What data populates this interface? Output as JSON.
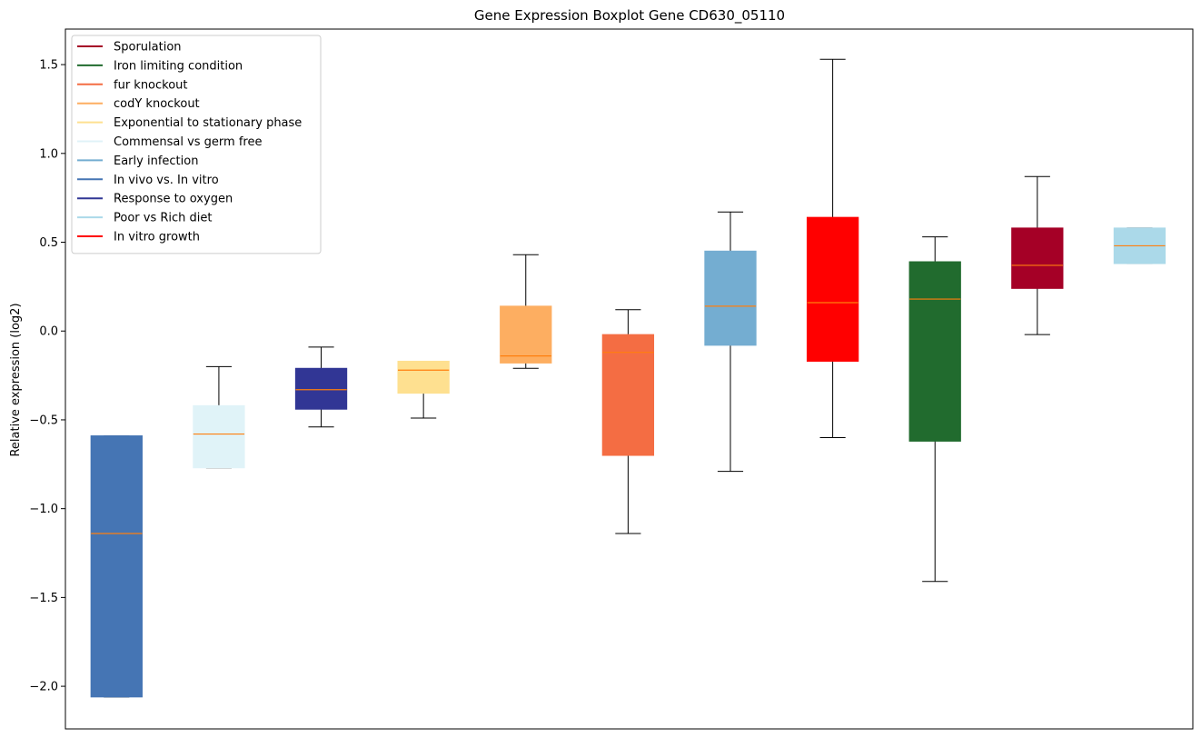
{
  "chart_data": {
    "type": "boxplot",
    "title": "Gene Expression Boxplot Gene CD630_05110",
    "xlabel": "",
    "ylabel": "Relative expression (log2)",
    "ylim": [
      -2.24,
      1.7
    ],
    "yticks": [
      -2.0,
      -1.5,
      -1.0,
      -0.5,
      0.0,
      0.5,
      1.0,
      1.5
    ],
    "ytick_labels": [
      "−2.0",
      "−1.5",
      "−1.0",
      "−0.5",
      "0.0",
      "0.5",
      "1.0",
      "1.5"
    ],
    "legend_position": "top-left",
    "median_color": "#ff7f0e",
    "legend": [
      {
        "label": "Sporulation",
        "color": "#a50026"
      },
      {
        "label": "Iron limiting condition",
        "color": "#216b2e"
      },
      {
        "label": "fur knockout",
        "color": "#f46d43"
      },
      {
        "label": "codY knockout",
        "color": "#fdae61"
      },
      {
        "label": "Exponential to stationary phase",
        "color": "#fee090"
      },
      {
        "label": "Commensal vs germ free",
        "color": "#e0f3f8"
      },
      {
        "label": "Early infection",
        "color": "#74add1"
      },
      {
        "label": "In vivo vs. In vitro",
        "color": "#4575b4"
      },
      {
        "label": "Response to oxygen",
        "color": "#313695"
      },
      {
        "label": "Poor vs Rich diet",
        "color": "#abd9e9"
      },
      {
        "label": "In vitro growth",
        "color": "#ff0000"
      }
    ],
    "boxes": [
      {
        "group": "In vivo vs. In vitro",
        "whislo": -2.06,
        "q1": -2.06,
        "med": -1.14,
        "q3": -0.59,
        "whishi": -0.59,
        "color": "#4575b4"
      },
      {
        "group": "Commensal vs germ free",
        "whislo": -0.77,
        "q1": -0.77,
        "med": -0.58,
        "q3": -0.42,
        "whishi": -0.2,
        "color": "#e0f3f8"
      },
      {
        "group": "Response to oxygen",
        "whislo": -0.54,
        "q1": -0.44,
        "med": -0.33,
        "q3": -0.21,
        "whishi": -0.09,
        "color": "#313695"
      },
      {
        "group": "Exponential to stationary phase",
        "whislo": -0.49,
        "q1": -0.35,
        "med": -0.22,
        "q3": -0.17,
        "whishi": -0.17,
        "color": "#fee090"
      },
      {
        "group": "codY knockout",
        "whislo": -0.21,
        "q1": -0.18,
        "med": -0.14,
        "q3": 0.14,
        "whishi": 0.43,
        "color": "#fdae61"
      },
      {
        "group": "fur knockout",
        "whislo": -1.14,
        "q1": -0.7,
        "med": -0.12,
        "q3": -0.02,
        "whishi": 0.12,
        "color": "#f46d43"
      },
      {
        "group": "Early infection",
        "whislo": -0.79,
        "q1": -0.08,
        "med": 0.14,
        "q3": 0.45,
        "whishi": 0.67,
        "color": "#74add1"
      },
      {
        "group": "In vitro growth",
        "whislo": -0.6,
        "q1": -0.17,
        "med": 0.16,
        "q3": 0.64,
        "whishi": 1.53,
        "color": "#ff0000"
      },
      {
        "group": "Iron limiting condition",
        "whislo": -1.41,
        "q1": -0.62,
        "med": 0.18,
        "q3": 0.39,
        "whishi": 0.53,
        "color": "#216b2e"
      },
      {
        "group": "Sporulation",
        "whislo": -0.02,
        "q1": 0.24,
        "med": 0.37,
        "q3": 0.58,
        "whishi": 0.87,
        "color": "#a50026"
      },
      {
        "group": "Poor vs Rich diet",
        "whislo": 0.38,
        "q1": 0.38,
        "med": 0.48,
        "q3": 0.58,
        "whishi": 0.58,
        "color": "#abd9e9"
      }
    ]
  }
}
